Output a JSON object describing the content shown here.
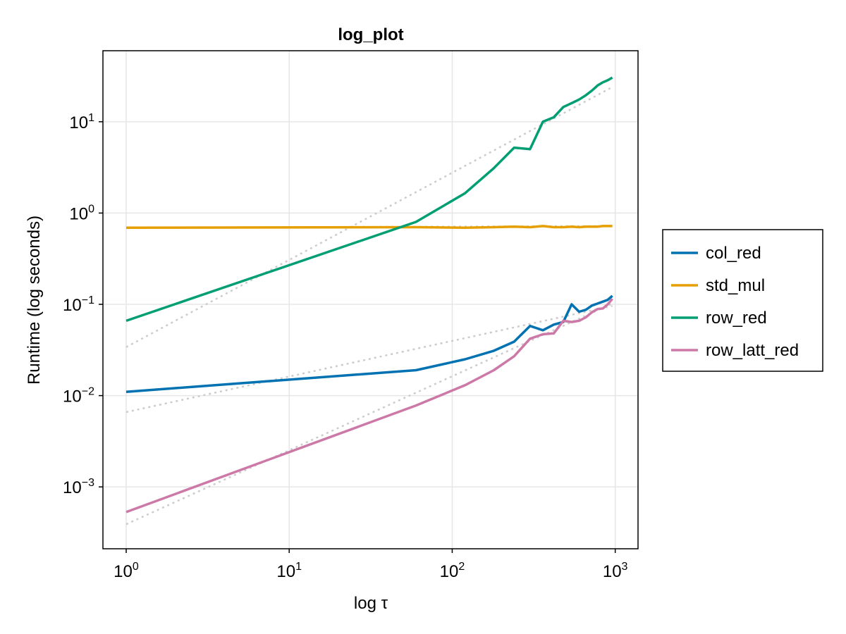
{
  "chart_data": {
    "type": "line",
    "title": "log_plot",
    "xlabel": "log τ",
    "ylabel": "Runtime (log seconds)",
    "x_scale": "log",
    "y_scale": "log",
    "xlim": [
      0.72,
      1380
    ],
    "ylim": [
      0.00021,
      60
    ],
    "grid": true,
    "legend_position": "right",
    "x_ticks": [
      {
        "value": 1,
        "base": "10",
        "exp": "0"
      },
      {
        "value": 10,
        "base": "10",
        "exp": "1"
      },
      {
        "value": 100,
        "base": "10",
        "exp": "2"
      },
      {
        "value": 1000,
        "base": "10",
        "exp": "3"
      }
    ],
    "y_ticks": [
      {
        "value": 0.001,
        "base": "10",
        "exp": "−3"
      },
      {
        "value": 0.01,
        "base": "10",
        "exp": "−2"
      },
      {
        "value": 0.1,
        "base": "10",
        "exp": "−1"
      },
      {
        "value": 1,
        "base": "10",
        "exp": "0"
      },
      {
        "value": 10,
        "base": "10",
        "exp": "1"
      }
    ],
    "series": [
      {
        "name": "col_red",
        "color": "#0072b2",
        "x": [
          1,
          60,
          120,
          180,
          240,
          300,
          360,
          420,
          480,
          540,
          600,
          660,
          720,
          780,
          840,
          900,
          960
        ],
        "y": [
          0.011,
          0.019,
          0.025,
          0.031,
          0.039,
          0.058,
          0.052,
          0.06,
          0.064,
          0.1,
          0.083,
          0.087,
          0.097,
          0.102,
          0.107,
          0.112,
          0.124
        ]
      },
      {
        "name": "std_mul",
        "color": "#e69f00",
        "x": [
          1,
          60,
          120,
          180,
          240,
          300,
          360,
          420,
          480,
          540,
          600,
          660,
          720,
          780,
          840,
          900,
          960
        ],
        "y": [
          0.69,
          0.7,
          0.69,
          0.7,
          0.71,
          0.7,
          0.72,
          0.7,
          0.7,
          0.71,
          0.7,
          0.71,
          0.71,
          0.71,
          0.72,
          0.72,
          0.72
        ]
      },
      {
        "name": "row_red",
        "color": "#009e73",
        "x": [
          1,
          60,
          120,
          180,
          240,
          300,
          360,
          420,
          480,
          540,
          600,
          660,
          720,
          780,
          840,
          900,
          960
        ],
        "y": [
          0.066,
          0.8,
          1.65,
          3.1,
          5.2,
          5.0,
          10.0,
          11.2,
          14.5,
          16.0,
          17.5,
          19.5,
          22.0,
          25.0,
          27.0,
          28.5,
          30.5
        ]
      },
      {
        "name": "row_latt_red",
        "color": "#cc79a7",
        "x": [
          1,
          60,
          120,
          180,
          240,
          300,
          360,
          420,
          480,
          540,
          600,
          660,
          720,
          780,
          840,
          900,
          960
        ],
        "y": [
          0.00053,
          0.0078,
          0.013,
          0.019,
          0.027,
          0.042,
          0.047,
          0.048,
          0.066,
          0.064,
          0.066,
          0.072,
          0.082,
          0.089,
          0.09,
          0.1,
          0.115
        ]
      }
    ],
    "fit_lines": [
      {
        "color": "#cccccc",
        "x": [
          1,
          960
        ],
        "y": [
          0.034,
          24.0
        ]
      },
      {
        "color": "#cccccc",
        "x": [
          1,
          960
        ],
        "y": [
          0.69,
          0.72
        ]
      },
      {
        "color": "#cccccc",
        "x": [
          1,
          960
        ],
        "y": [
          0.0066,
          0.096
        ]
      },
      {
        "color": "#cccccc",
        "x": [
          1,
          960
        ],
        "y": [
          0.00039,
          0.102
        ]
      }
    ]
  }
}
